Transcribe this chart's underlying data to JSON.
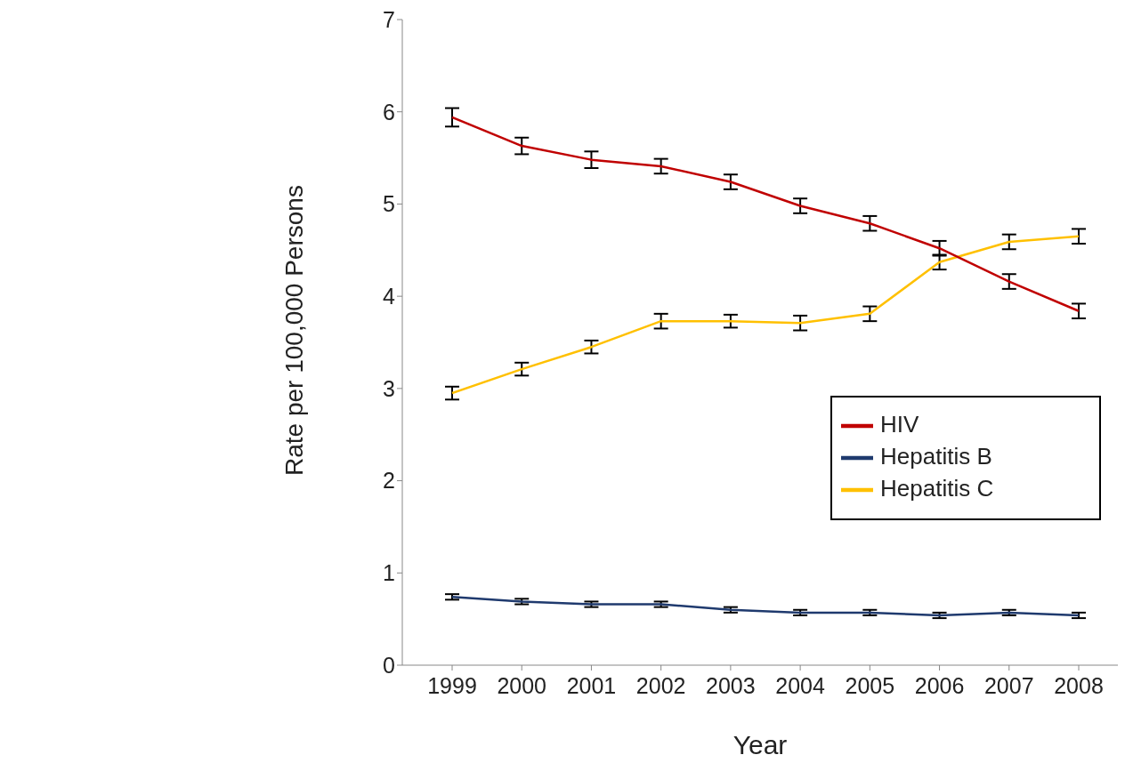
{
  "chart_data": {
    "type": "line",
    "xlabel": "Year",
    "ylabel": "Rate per 100,000 Persons",
    "categories": [
      "1999",
      "2000",
      "2001",
      "2002",
      "2003",
      "2004",
      "2005",
      "2006",
      "2007",
      "2008"
    ],
    "series": [
      {
        "name": "Hepatitis B",
        "color": "#1f3a6e",
        "values": [
          0.74,
          0.69,
          0.66,
          0.66,
          0.6,
          0.57,
          0.57,
          0.54,
          0.57,
          0.54
        ],
        "errors": [
          0.03,
          0.03,
          0.03,
          0.03,
          0.03,
          0.03,
          0.03,
          0.03,
          0.03,
          0.03
        ]
      },
      {
        "name": "Hepatitis C",
        "color": "#ffc000",
        "values": [
          2.95,
          3.21,
          3.45,
          3.73,
          3.73,
          3.71,
          3.81,
          4.37,
          4.59,
          4.65
        ],
        "errors": [
          0.07,
          0.07,
          0.07,
          0.08,
          0.07,
          0.08,
          0.08,
          0.08,
          0.08,
          0.08
        ]
      },
      {
        "name": "HIV",
        "color": "#c00000",
        "values": [
          5.94,
          5.63,
          5.48,
          5.41,
          5.24,
          4.98,
          4.79,
          4.52,
          4.16,
          3.84
        ],
        "errors": [
          0.1,
          0.09,
          0.09,
          0.08,
          0.08,
          0.08,
          0.08,
          0.08,
          0.08,
          0.08
        ]
      }
    ],
    "ylim": [
      0,
      7
    ],
    "yticks": [
      0,
      1,
      2,
      3,
      4,
      5,
      6,
      7
    ],
    "grid": false,
    "legend": "right",
    "marker": "none",
    "line_style": "solid"
  }
}
